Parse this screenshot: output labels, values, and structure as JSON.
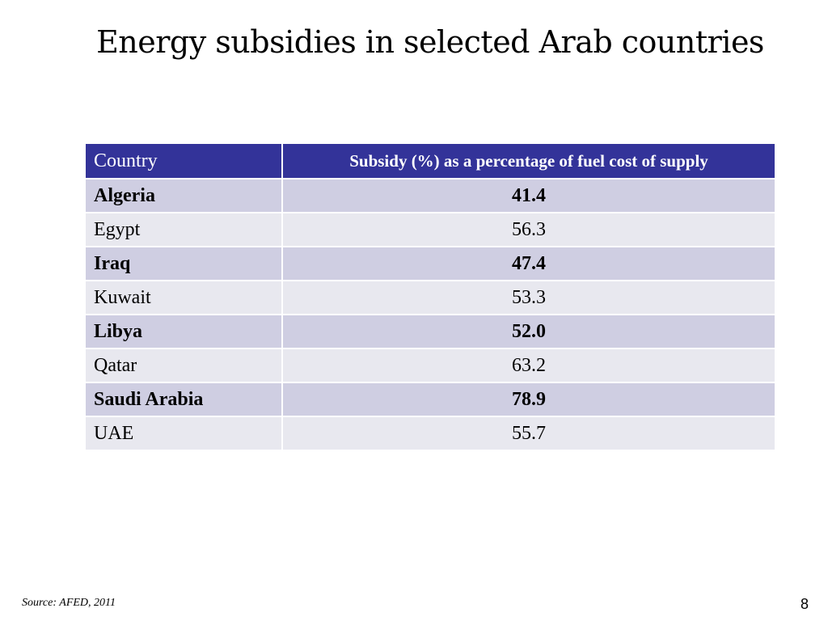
{
  "slide": {
    "title": "Energy subsidies in selected Arab countries",
    "source": "Source:  AFED, 2011",
    "page_number": "8"
  },
  "table": {
    "headers": {
      "country": "Country",
      "subsidy": "Subsidy (%) as a percentage of fuel cost of supply"
    },
    "rows": [
      {
        "country": "Algeria",
        "value": "41.4"
      },
      {
        "country": "Egypt",
        "value": "56.3"
      },
      {
        "country": "Iraq",
        "value": "47.4"
      },
      {
        "country": "Kuwait",
        "value": "53.3"
      },
      {
        "country": "Libya",
        "value": "52.0"
      },
      {
        "country": "Qatar",
        "value": "63.2"
      },
      {
        "country": "Saudi Arabia",
        "value": "78.9"
      },
      {
        "country": "UAE",
        "value": "55.7"
      }
    ]
  },
  "colors": {
    "header_background": "#333399",
    "header_text": "#ffffff",
    "row_dark": "#cfcee2",
    "row_light": "#e8e8ef"
  }
}
